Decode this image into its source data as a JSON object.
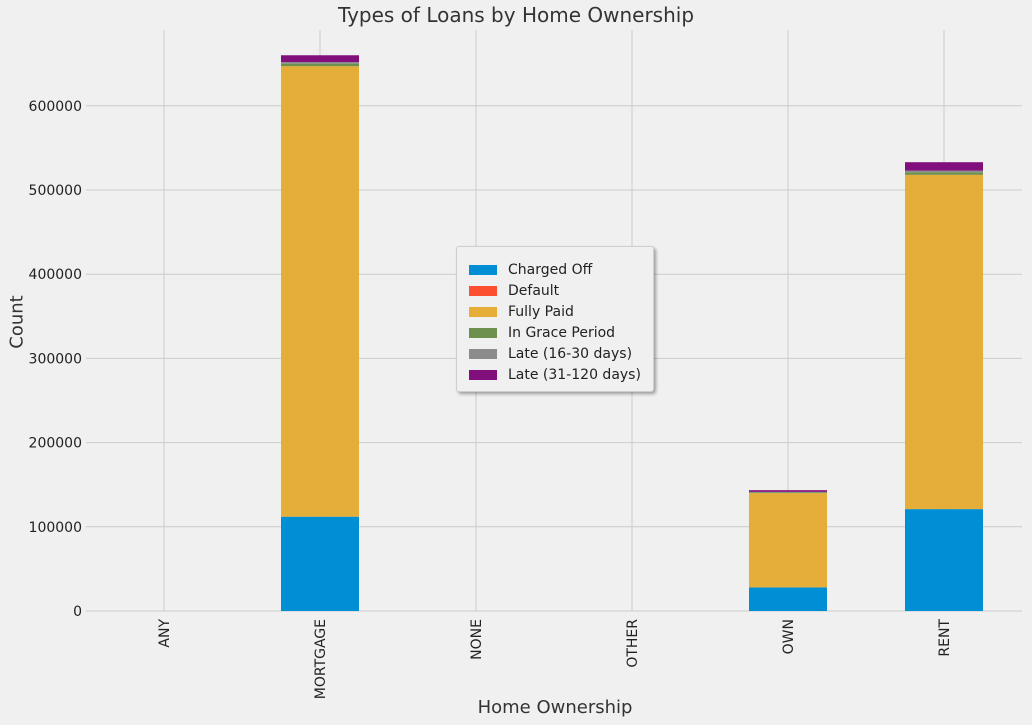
{
  "chart_data": {
    "type": "bar",
    "stacked": true,
    "title": "Types of Loans by Home Ownership",
    "xlabel": "Home Ownership",
    "ylabel": "Count",
    "categories": [
      "ANY",
      "MORTGAGE",
      "NONE",
      "OTHER",
      "OWN",
      "RENT"
    ],
    "ylim": [
      0,
      690000
    ],
    "yticks": [
      "0",
      "100000",
      "200000",
      "300000",
      "400000",
      "500000",
      "600000"
    ],
    "grid": true,
    "legend_position": "center",
    "series": [
      {
        "name": "Charged Off",
        "color": "#008fd5",
        "values": [
          0,
          112000,
          0,
          0,
          28000,
          121000
        ]
      },
      {
        "name": "Default",
        "color": "#fc4f30",
        "values": [
          0,
          0,
          0,
          0,
          0,
          0
        ]
      },
      {
        "name": "Fully Paid",
        "color": "#e5ae38",
        "values": [
          0,
          535000,
          0,
          0,
          112000,
          397000
        ]
      },
      {
        "name": "In Grace Period",
        "color": "#6d904f",
        "values": [
          0,
          3000,
          0,
          0,
          1000,
          3000
        ]
      },
      {
        "name": "Late (16-30 days)",
        "color": "#8b8b8b",
        "values": [
          0,
          2000,
          0,
          0,
          500,
          2000
        ]
      },
      {
        "name": "Late (31-120 days)",
        "color": "#810f7c",
        "values": [
          0,
          8000,
          0,
          0,
          2000,
          10000
        ]
      }
    ]
  }
}
